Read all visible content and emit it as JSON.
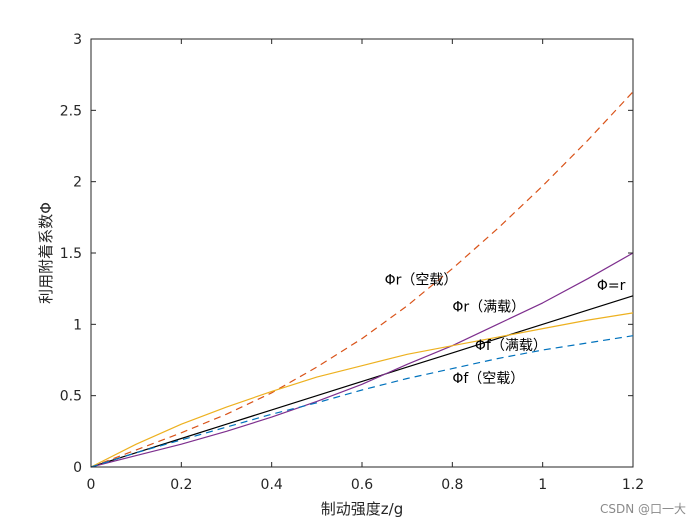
{
  "chart_data": {
    "type": "line",
    "title": "",
    "xlabel": "制动强度z/g",
    "ylabel": "利用附着系数Φ",
    "xlim": [
      0,
      1.2
    ],
    "ylim": [
      0,
      3
    ],
    "xticks": [
      0,
      0.2,
      0.4,
      0.6,
      0.8,
      1,
      1.2
    ],
    "xtick_labels": [
      "0",
      "0.2",
      "0.4",
      "0.6",
      "0.8",
      "1",
      "1.2"
    ],
    "yticks": [
      0,
      0.5,
      1,
      1.5,
      2,
      2.5,
      3
    ],
    "ytick_labels": [
      "0",
      "0.5",
      "1",
      "1.5",
      "2",
      "2.5",
      "3"
    ],
    "grid": false,
    "box": true,
    "x": [
      0,
      0.1,
      0.2,
      0.3,
      0.4,
      0.5,
      0.6,
      0.7,
      0.8,
      0.9,
      1.0,
      1.1,
      1.2
    ],
    "series": [
      {
        "name": "Φ=r",
        "color": "#000000",
        "dash": "solid",
        "values": [
          0,
          0.1,
          0.2,
          0.3,
          0.4,
          0.5,
          0.6,
          0.7,
          0.8,
          0.9,
          1.0,
          1.1,
          1.2
        ]
      },
      {
        "name": "Φr（空载）",
        "color": "#d95319",
        "dash": "dashed",
        "values": [
          0,
          0.12,
          0.24,
          0.37,
          0.52,
          0.7,
          0.9,
          1.13,
          1.39,
          1.67,
          1.97,
          2.29,
          2.63
        ]
      },
      {
        "name": "Φr（满载）",
        "color": "#7e2f8e",
        "dash": "solid",
        "values": [
          0,
          0.08,
          0.16,
          0.25,
          0.35,
          0.46,
          0.58,
          0.72,
          0.85,
          1.0,
          1.15,
          1.32,
          1.5
        ]
      },
      {
        "name": "Φf（满载）",
        "color": "#edb120",
        "dash": "solid",
        "values": [
          0,
          0.16,
          0.3,
          0.42,
          0.53,
          0.63,
          0.71,
          0.79,
          0.85,
          0.91,
          0.97,
          1.03,
          1.08
        ]
      },
      {
        "name": "Φf（空载）",
        "color": "#0072bd",
        "dash": "dashed",
        "values": [
          0,
          0.1,
          0.19,
          0.28,
          0.37,
          0.45,
          0.54,
          0.62,
          0.69,
          0.76,
          0.82,
          0.87,
          0.92
        ]
      }
    ],
    "annotations": [
      {
        "text": "Φr（空载）",
        "x": 0.65,
        "y": 1.28
      },
      {
        "text": "Φr（满载）",
        "x": 0.8,
        "y": 1.09
      },
      {
        "text": "Φ=r",
        "x": 1.12,
        "y": 1.24
      },
      {
        "text": "Φf（满载）",
        "x": 0.85,
        "y": 0.82
      },
      {
        "text": "Φf（空载）",
        "x": 0.8,
        "y": 0.59
      }
    ]
  },
  "watermark": "CSDN @口一大"
}
